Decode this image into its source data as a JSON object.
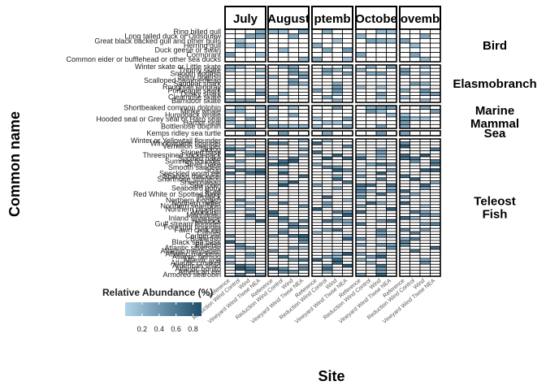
{
  "chart_data": {
    "type": "heatmap",
    "xlabel": "Site",
    "ylabel": "Common name",
    "legend": {
      "title": "Relative Abundance (%)",
      "ticks": [
        0.2,
        0.4,
        0.6,
        0.8
      ],
      "range": [
        0,
        0.9
      ],
      "low_color": "#b3d4ea",
      "high_color": "#1c4e6b",
      "position": "bottom-left"
    },
    "months": [
      "July",
      "August",
      "September",
      "October",
      "November"
    ],
    "month_strip_labels": [
      "July",
      "August",
      "ptemb",
      "Octobe",
      "ovemb"
    ],
    "sites": [
      "Reference",
      "Reduction Wind Control",
      "Wind",
      "Vineyard Wind Tiwse NEA"
    ],
    "groups": [
      {
        "name": "Bird",
        "label_lines": [
          "Bird"
        ],
        "species": [
          "Ring billed gull",
          "Long tailed duck or Oldsquaw",
          "Great black backed gull and other gulls",
          "Herring gull",
          "Duck geese or swan",
          "Cormorant",
          "Common eider or bufflehead or other sea ducks"
        ]
      },
      {
        "name": "Elasmobranch",
        "label_lines": [
          "Elasmobranch"
        ],
        "species": [
          "Winter skate or Little skate",
          "Thorny skate",
          "Smooth dogfish",
          "Spiny dogfish",
          "Scalloped hammerhead",
          "Sandbar shark",
          "Roughtail stingray",
          "Porbeagle shark",
          "Dusky shark",
          "Clearnose skate",
          "Barndoor skate"
        ]
      },
      {
        "name": "Marine Mammal",
        "label_lines": [
          "Marine",
          "Mammal"
        ],
        "species": [
          "Shortbeaked common dolphin",
          "Minke whale",
          "Humpback whale",
          "Hooded seal or Grey seal or Harp seal",
          "Harbor seal",
          "Bottlenose dolphin"
        ]
      },
      {
        "name": "Sea Turtle",
        "label_lines": [
          "Sea"
        ],
        "species": [
          "Kemps ridley sea turtle"
        ]
      },
      {
        "name": "Teleost Fish",
        "label_lines": [
          "Teleost",
          "Fish"
        ],
        "species": [
          "Winter or Yellowtail flounder",
          "Windowpane flounder",
          "Vermilion snapper",
          "Tautog",
          "Striped bass",
          "Threespined stickleback",
          "Spotted hake",
          "Summer flounder",
          "Silver hake",
          "Smooth sandeel",
          "Scup",
          "Speckled worm eel",
          "Spanish mackerel",
          "Shortnose sturgeon",
          "Sheepshead",
          "Sea robin",
          "Seaboard goby",
          "Scad",
          "Red White or Spotted hake",
          "Pollock",
          "Northern kingfish",
          "Northern puffer",
          "Northern sea robin",
          "Northern pipefish",
          "Monkfish",
          "Menhaden",
          "Inland silverside",
          "Haddock",
          "Gulf stream flounder",
          "Fourspot flounder",
          "Fawn cusk eel",
          "Cunner",
          "Conger eel",
          "Butterfish",
          "Black sea bass",
          "Bluefish",
          "Atlantic silverside",
          "Atlantic menhaden",
          "Atlantic mackerel",
          "Atlantic herring",
          "Atlantic cod",
          "Atlantic croaker",
          "American shad",
          "Atlantic bonito",
          "American eel",
          "Armored searobin"
        ]
      }
    ]
  }
}
